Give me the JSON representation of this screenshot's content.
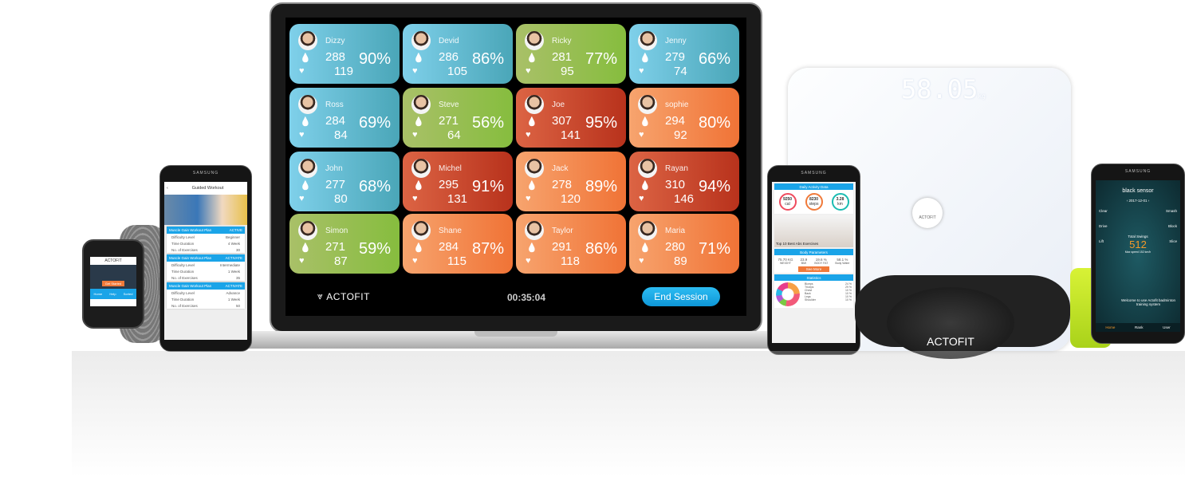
{
  "dashboard": {
    "cards": [
      {
        "name": "Dizzy",
        "calories": "288",
        "heart_rate": "119",
        "percent": "90%",
        "color": "blue"
      },
      {
        "name": "Devid",
        "calories": "286",
        "heart_rate": "105",
        "percent": "86%",
        "color": "blue"
      },
      {
        "name": "Ricky",
        "calories": "281",
        "heart_rate": "95",
        "percent": "77%",
        "color": "green"
      },
      {
        "name": "Jenny",
        "calories": "279",
        "heart_rate": "74",
        "percent": "66%",
        "color": "blue"
      },
      {
        "name": "Ross",
        "calories": "284",
        "heart_rate": "84",
        "percent": "69%",
        "color": "blue"
      },
      {
        "name": "Steve",
        "calories": "271",
        "heart_rate": "64",
        "percent": "56%",
        "color": "green"
      },
      {
        "name": "Joe",
        "calories": "307",
        "heart_rate": "141",
        "percent": "95%",
        "color": "red"
      },
      {
        "name": "sophie",
        "calories": "294",
        "heart_rate": "92",
        "percent": "80%",
        "color": "orange"
      },
      {
        "name": "John",
        "calories": "277",
        "heart_rate": "80",
        "percent": "68%",
        "color": "blue"
      },
      {
        "name": "Michel",
        "calories": "295",
        "heart_rate": "131",
        "percent": "91%",
        "color": "red"
      },
      {
        "name": "Jack",
        "calories": "278",
        "heart_rate": "120",
        "percent": "89%",
        "color": "orange"
      },
      {
        "name": "Rayan",
        "calories": "310",
        "heart_rate": "146",
        "percent": "94%",
        "color": "red"
      },
      {
        "name": "Simon",
        "calories": "271",
        "heart_rate": "87",
        "percent": "59%",
        "color": "green"
      },
      {
        "name": "Shane",
        "calories": "284",
        "heart_rate": "115",
        "percent": "87%",
        "color": "orange"
      },
      {
        "name": "Taylor",
        "calories": "291",
        "heart_rate": "118",
        "percent": "86%",
        "color": "orange"
      },
      {
        "name": "Maria",
        "calories": "280",
        "heart_rate": "89",
        "percent": "71%",
        "color": "orange"
      }
    ],
    "logo": "ACTOFIT",
    "timer": "00:35:04",
    "end_session": "End Session"
  },
  "left_phone": {
    "brand": "SAMSUNG",
    "title": "Guided Workout",
    "plans": [
      {
        "name": "Muscle Gain Workout Plan",
        "action": "ACTIVE",
        "level": "Beginner",
        "duration": "4 Week",
        "exercises": "30"
      },
      {
        "name": "Muscle Gain Workout Plan",
        "action": "ACTIVATE",
        "level": "Intermediate",
        "duration": "1 Week",
        "exercises": "35"
      },
      {
        "name": "Muscle Gain Workout Plan",
        "action": "ACTIVATE",
        "level": "Advance",
        "duration": "1 Week",
        "exercises": "50"
      }
    ],
    "labels": {
      "level": "Difficulty Level",
      "duration": "Time Duration",
      "exercises": "No. of Exercises"
    }
  },
  "watch": {
    "logo": "ACTOFIT",
    "button": "Get Started",
    "nav": [
      "Home",
      "Help",
      "Sorted"
    ]
  },
  "middle_phone": {
    "brand": "SAMSUNG",
    "section1": "Daily Activity Data",
    "rings": [
      {
        "value": "9250",
        "unit": "cal",
        "color": "#ef4b5e"
      },
      {
        "value": "8230",
        "unit": "steps",
        "color": "#f07a3a"
      },
      {
        "value": "3.28",
        "unit": "km",
        "color": "#1bbcb2"
      }
    ],
    "banner": "Top 10 Best Abs Exercises",
    "section2": "Body Parameters",
    "params": [
      {
        "value": "75.70 KG",
        "label": "WEIGHT"
      },
      {
        "value": "23.9",
        "label": "BMI"
      },
      {
        "value": "19.6 %",
        "label": "BODY FAT"
      },
      {
        "value": "58.1 %",
        "label": "Body Water"
      }
    ],
    "see_more": "See More",
    "section3": "Statistics",
    "stats": [
      {
        "label": "Biceps",
        "value": "24 %"
      },
      {
        "label": "Triceps",
        "value": "29 %"
      },
      {
        "label": "Chest",
        "value": "10 %"
      },
      {
        "label": "Back",
        "value": "10 %"
      },
      {
        "label": "Legs",
        "value": "10 %"
      },
      {
        "label": "Shoulder",
        "value": "10 %"
      }
    ]
  },
  "scale": {
    "reading": "58.05",
    "unit": "kg",
    "logo": "ACTOFIT"
  },
  "heart_strap": {
    "logo": "ACTOFIT"
  },
  "right_phone": {
    "brand": "SAMSUNG",
    "title": "black sensor",
    "date": "2017-12-01",
    "shots": [
      "Clear",
      "Smash",
      "Drive",
      "Block",
      "Lift",
      "Slice"
    ],
    "total_label": "Total Swings",
    "total": "512",
    "max_speed": "Max speed 152 km/h",
    "welcome": "Welcome to use Actofit badminton training system",
    "nav": [
      "Home",
      "Rank",
      "User"
    ]
  },
  "colors": {
    "blue": "#5fbfdc",
    "green": "#97bf4f",
    "red": "#cc4a2c",
    "orange": "#f4894a",
    "accent": "#1aa4e8"
  }
}
